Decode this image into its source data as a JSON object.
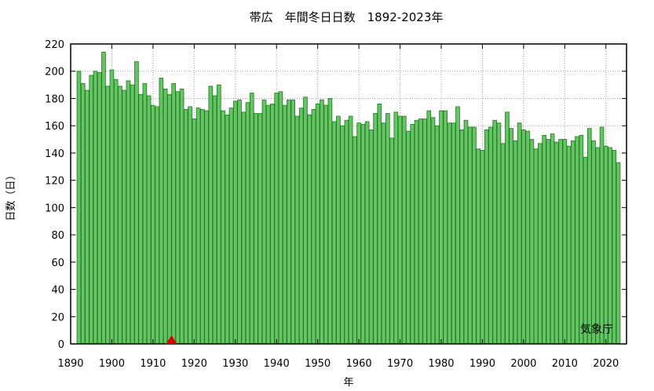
{
  "chart_data": {
    "type": "bar",
    "title": "帯広　年間冬日日数　1892-2023年",
    "xlabel": "年",
    "ylabel": "日数（日）",
    "credit": "気象庁",
    "xlim": [
      1890,
      2025
    ],
    "ylim": [
      0,
      220
    ],
    "xticks": [
      1890,
      1900,
      1910,
      1920,
      1930,
      1940,
      1950,
      1960,
      1970,
      1980,
      1990,
      2000,
      2010,
      2020
    ],
    "yticks": [
      0,
      20,
      40,
      60,
      80,
      100,
      120,
      140,
      160,
      180,
      200,
      220
    ],
    "grid": true,
    "marker_year": 1914.5,
    "colors": {
      "bar_fill": "#66c466",
      "bar_stroke": "#1a7a1a",
      "marker": "#dd0000",
      "grid": "#999999"
    },
    "x_start": 1892,
    "values": [
      200,
      191,
      186,
      197,
      200,
      199,
      214,
      189,
      201,
      194,
      189,
      186,
      193,
      190,
      207,
      183,
      191,
      182,
      175,
      174,
      195,
      187,
      183,
      191,
      185,
      187,
      172,
      174,
      165,
      173,
      172,
      171,
      189,
      182,
      190,
      171,
      168,
      173,
      178,
      179,
      170,
      177,
      184,
      169,
      169,
      179,
      175,
      176,
      184,
      185,
      175,
      179,
      179,
      167,
      173,
      181,
      168,
      172,
      176,
      179,
      175,
      180,
      163,
      167,
      160,
      164,
      167,
      152,
      162,
      161,
      163,
      157,
      169,
      176,
      162,
      169,
      151,
      170,
      167,
      167,
      156,
      161,
      164,
      165,
      165,
      171,
      166,
      160,
      171,
      171,
      162,
      162,
      174,
      157,
      164,
      159,
      159,
      143,
      142,
      157,
      159,
      164,
      162,
      147,
      170,
      158,
      149,
      162,
      157,
      156,
      150,
      143,
      147,
      153,
      150,
      154,
      148,
      150,
      150,
      145,
      149,
      152,
      153,
      137,
      158,
      149,
      144,
      159,
      145,
      144,
      142,
      133
    ]
  }
}
